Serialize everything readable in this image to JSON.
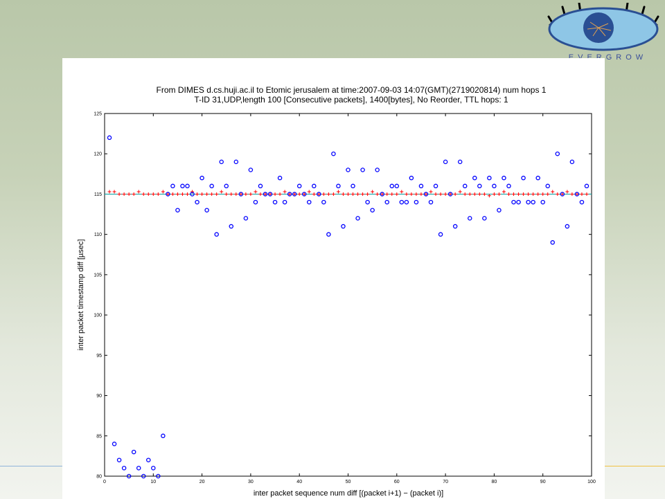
{
  "logo": {
    "text": "EVERGROW",
    "colors": {
      "eye": "#8ec6e6",
      "iris": "#2a4f93",
      "lashes": "#000000"
    }
  },
  "chart_data": {
    "type": "scatter",
    "title": "From DIMES d.cs.huji.ac.il to Etomic jerusalem at time:2007-09-03 14:07(GMT)(2719020814) num hops 1",
    "subtitle": "T-ID 31,UDP,length 100 [Consecutive packets], 1400[bytes], No Reorder, TTL hops: 1",
    "xlabel": "inter packet sequence num diff  [(packet i+1)  −  (packet i)]",
    "ylabel": "inter packet timestamp diff [µsec]",
    "xlim": [
      0,
      100
    ],
    "ylim": [
      80,
      125
    ],
    "xticks": [
      0,
      10,
      20,
      30,
      40,
      50,
      60,
      70,
      80,
      90,
      100
    ],
    "yticks": [
      80,
      85,
      90,
      95,
      100,
      105,
      110,
      115,
      120,
      125
    ],
    "grid": false,
    "series": [
      {
        "marker": "circle",
        "color": "#0000ff",
        "x": [
          1,
          2,
          3,
          4,
          5,
          6,
          7,
          8,
          9,
          10,
          11,
          12,
          13,
          14,
          15,
          16,
          17,
          18,
          19,
          20,
          21,
          22,
          23,
          24,
          25,
          26,
          27,
          28,
          29,
          30,
          31,
          32,
          33,
          34,
          35,
          36,
          37,
          38,
          39,
          40,
          41,
          42,
          43,
          44,
          45,
          46,
          47,
          48,
          49,
          50,
          51,
          52,
          53,
          54,
          55,
          56,
          57,
          58,
          59,
          60,
          61,
          62,
          63,
          64,
          65,
          66,
          67,
          68,
          69,
          70,
          71,
          72,
          73,
          74,
          75,
          76,
          77,
          78,
          79,
          80,
          81,
          82,
          83,
          84,
          85,
          86,
          87,
          88,
          89,
          90,
          91,
          92,
          93,
          94,
          95,
          96,
          97,
          98,
          99
        ],
        "y": [
          122,
          84,
          82,
          81,
          80,
          83,
          81,
          80,
          82,
          81,
          80,
          85,
          115,
          116,
          113,
          116,
          116,
          115,
          114,
          117,
          113,
          116,
          110,
          119,
          116,
          111,
          119,
          115,
          112,
          118,
          114,
          116,
          115,
          115,
          114,
          117,
          114,
          115,
          115,
          116,
          115,
          114,
          116,
          115,
          114,
          110,
          120,
          116,
          111,
          118,
          116,
          112,
          118,
          114,
          113,
          118,
          115,
          114,
          116,
          116,
          114,
          114,
          117,
          114,
          116,
          115,
          114,
          116,
          110,
          119,
          115,
          111,
          119,
          116,
          112,
          117,
          116,
          112,
          117,
          116,
          113,
          117,
          116,
          114,
          114,
          117,
          114,
          114,
          117,
          114,
          116,
          109,
          120,
          115,
          111,
          119,
          115,
          114,
          116
        ]
      },
      {
        "marker": "plus",
        "color": "#ff0000",
        "x": [
          1,
          2,
          3,
          4,
          5,
          6,
          7,
          8,
          9,
          10,
          11,
          12,
          13,
          14,
          15,
          16,
          17,
          18,
          19,
          20,
          21,
          22,
          23,
          24,
          25,
          26,
          27,
          28,
          29,
          30,
          31,
          32,
          33,
          34,
          35,
          36,
          37,
          38,
          39,
          40,
          41,
          42,
          43,
          44,
          45,
          46,
          47,
          48,
          49,
          50,
          51,
          52,
          53,
          54,
          55,
          56,
          57,
          58,
          59,
          60,
          61,
          62,
          63,
          64,
          65,
          66,
          67,
          68,
          69,
          70,
          71,
          72,
          73,
          74,
          75,
          76,
          77,
          78,
          79,
          80,
          81,
          82,
          83,
          84,
          85,
          86,
          87,
          88,
          89,
          90,
          91,
          92,
          93,
          94,
          95,
          96,
          97,
          98,
          99
        ],
        "y": [
          115.3,
          115.3,
          115,
          115,
          115,
          115,
          115.3,
          115,
          115,
          115,
          115,
          115.3,
          115,
          115,
          115,
          115,
          115,
          115.3,
          115,
          115,
          115,
          115,
          115,
          115.3,
          115,
          115,
          115,
          115,
          115,
          115,
          115.3,
          115,
          115,
          115,
          115,
          115,
          115.3,
          115,
          115,
          115,
          115,
          115.3,
          115,
          115,
          115,
          115,
          115,
          115.3,
          115,
          115,
          115,
          115,
          115,
          115,
          115.3,
          115,
          115,
          115,
          115,
          115,
          115.3,
          115,
          115,
          115,
          115,
          115,
          115.3,
          115,
          115,
          115,
          115,
          115,
          115.3,
          115,
          115,
          115,
          115,
          115,
          114.8,
          115,
          115,
          115.3,
          115,
          115,
          115,
          115,
          115,
          115,
          115,
          115,
          115,
          115.3,
          115,
          115,
          115.3,
          115,
          115,
          115,
          115
        ]
      }
    ],
    "reference_line": {
      "y": 115,
      "color": "#00a0a0"
    }
  }
}
